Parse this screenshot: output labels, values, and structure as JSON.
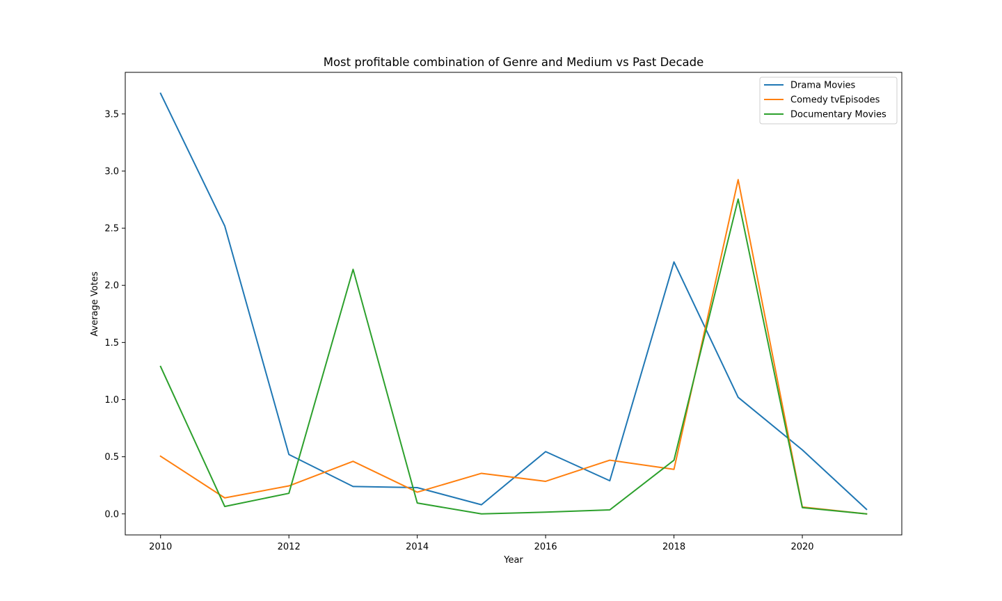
{
  "chart_data": {
    "type": "line",
    "title": "Most profitable combination of Genre and Medium vs Past Decade",
    "xlabel": "Year",
    "ylabel": "Average Votes",
    "x": [
      2010,
      2011,
      2012,
      2013,
      2014,
      2015,
      2016,
      2017,
      2018,
      2019,
      2020,
      2021
    ],
    "xlim": [
      2009.45,
      2021.55
    ],
    "ylim": [
      -0.184,
      3.864
    ],
    "xticks": [
      2010,
      2012,
      2014,
      2016,
      2018,
      2020
    ],
    "yticks": [
      0.0,
      0.5,
      1.0,
      1.5,
      2.0,
      2.5,
      3.0,
      3.5
    ],
    "grid": false,
    "legend_position": "top-right",
    "series": [
      {
        "name": "Drama Movies",
        "color": "#1f77b4",
        "values": [
          3.68,
          2.52,
          0.52,
          0.24,
          0.23,
          0.08,
          0.545,
          0.29,
          2.205,
          1.02,
          0.56,
          0.04
        ]
      },
      {
        "name": "Comedy tvEpisodes",
        "color": "#ff7f0e",
        "values": [
          0.505,
          0.14,
          0.245,
          0.46,
          0.19,
          0.355,
          0.285,
          0.47,
          0.39,
          2.925,
          0.06,
          0.0
        ]
      },
      {
        "name": "Documentary Movies",
        "color": "#2ca02c",
        "values": [
          1.29,
          0.065,
          0.18,
          2.14,
          0.095,
          0.0,
          0.015,
          0.035,
          0.47,
          2.755,
          0.055,
          0.0
        ]
      }
    ]
  }
}
